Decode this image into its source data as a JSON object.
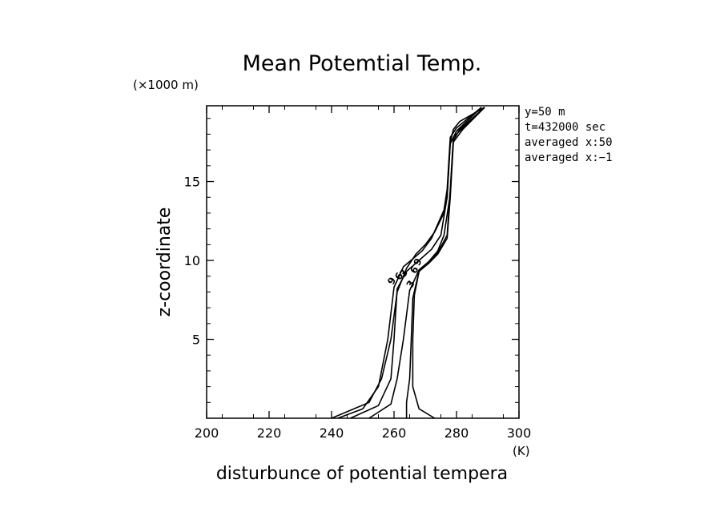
{
  "chart_data": {
    "type": "line",
    "title": "Mean Potemtial Temp.",
    "xlabel": "disturbunce of potential tempera",
    "ylabel": "z-coordinate",
    "x_unit": "(K)",
    "y_unit": "(×1000 m)",
    "xlim": [
      200,
      300
    ],
    "ylim": [
      0,
      19.8
    ],
    "x_ticks": [
      200,
      220,
      240,
      260,
      280,
      300
    ],
    "y_ticks": [
      5,
      10,
      15
    ],
    "annotations": [
      "y=50 m",
      "t=432000 sec",
      "averaged  x:50",
      "averaged  x:−1"
    ],
    "contour_labels": [
      "9",
      "6",
      "3",
      "3",
      "6",
      "9"
    ],
    "series": [
      {
        "x": [
          240,
          252,
          256,
          259,
          261,
          264,
          267,
          270,
          273,
          276,
          277,
          278,
          279,
          281,
          289
        ],
        "y": [
          0,
          1.0,
          2.5,
          5.0,
          8.0,
          9.5,
          10.4,
          11.0,
          11.8,
          13.0,
          14.0,
          17.5,
          18.3,
          18.8,
          19.7
        ]
      },
      {
        "x": [
          242,
          250,
          255,
          258,
          260,
          263,
          266,
          269,
          272,
          276,
          277,
          278,
          280,
          288
        ],
        "y": [
          0,
          0.6,
          2.0,
          5.0,
          8.3,
          9.6,
          10.1,
          10.6,
          11.4,
          13.2,
          14.5,
          17.8,
          18.4,
          19.7
        ]
      },
      {
        "x": [
          246,
          255,
          259,
          260,
          261,
          264,
          268,
          272,
          275,
          277,
          278,
          280,
          288
        ],
        "y": [
          0,
          0.8,
          2.5,
          5.0,
          8.2,
          9.3,
          10.0,
          10.7,
          11.6,
          14.0,
          17.4,
          18.2,
          19.7
        ]
      },
      {
        "x": [
          252,
          259,
          261,
          263,
          265,
          268,
          271,
          274,
          276,
          278,
          279,
          281,
          289
        ],
        "y": [
          0,
          0.9,
          2.5,
          5.0,
          8.1,
          9.4,
          9.9,
          10.6,
          11.6,
          14.2,
          17.6,
          18.3,
          19.7
        ]
      },
      {
        "x": [
          264,
          264,
          265,
          265.5,
          266,
          268,
          271,
          274,
          277,
          278,
          279,
          282,
          289
        ],
        "y": [
          0,
          1.0,
          2.5,
          5.0,
          7.6,
          9.3,
          9.9,
          10.5,
          11.6,
          14.5,
          17.8,
          18.4,
          19.7
        ]
      },
      {
        "x": [
          273,
          268,
          266,
          266,
          266.5,
          268,
          271,
          274,
          277,
          278,
          279,
          282,
          289
        ],
        "y": [
          0,
          0.6,
          2.0,
          5.0,
          7.8,
          9.3,
          9.8,
          10.4,
          11.4,
          14.0,
          17.5,
          18.3,
          19.7
        ]
      }
    ]
  }
}
